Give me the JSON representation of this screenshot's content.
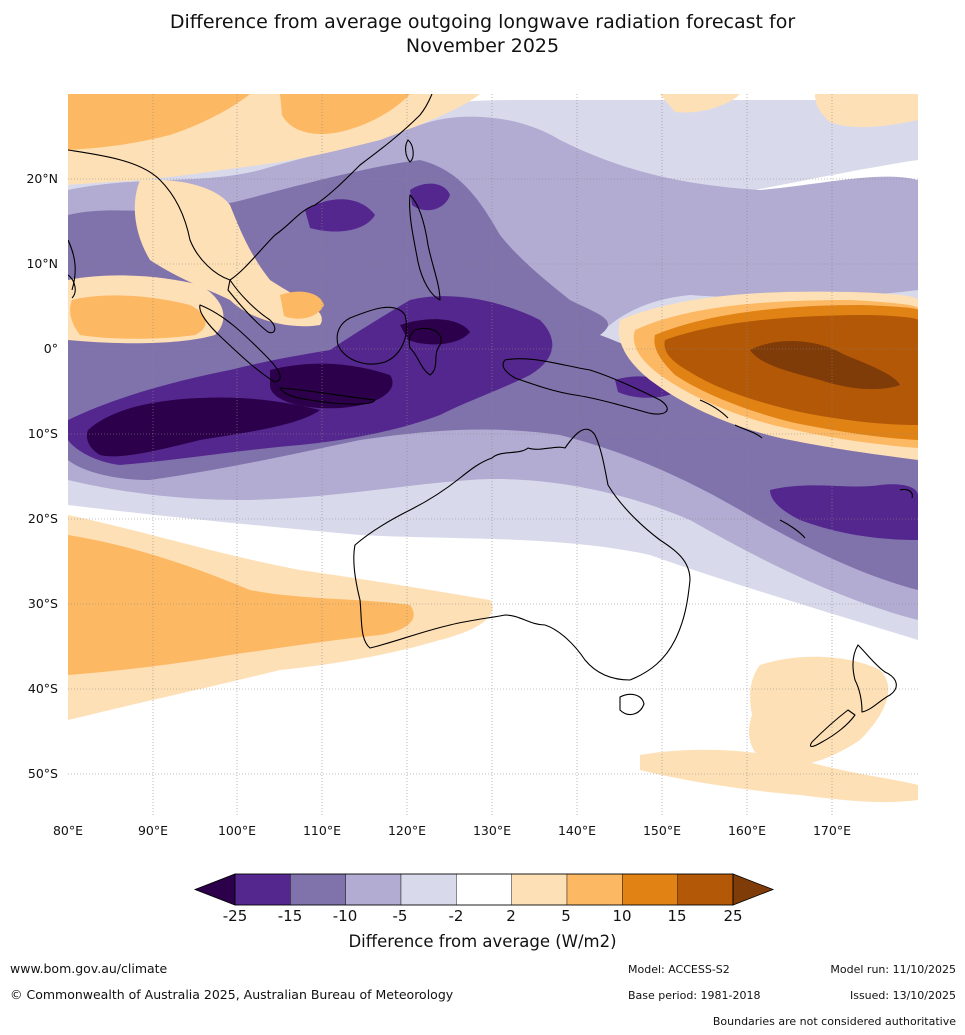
{
  "title_line1": "Difference from average outgoing longwave radiation forecast for",
  "title_line2": "November 2025",
  "lat_labels": [
    "20°N",
    "10°N",
    "0°",
    "10°S",
    "20°S",
    "30°S",
    "40°S",
    "50°S"
  ],
  "lon_labels": [
    "80°E",
    "90°E",
    "100°E",
    "110°E",
    "120°E",
    "130°E",
    "140°E",
    "150°E",
    "160°E",
    "170°E"
  ],
  "colorbar": {
    "ticks": [
      "-25",
      "-15",
      "-10",
      "-5",
      "-2",
      "2",
      "5",
      "10",
      "15",
      "25"
    ],
    "colors": [
      "#54278f",
      "#8073ac",
      "#b2abd2",
      "#d8daeb",
      "#ffffff",
      "#fee0b6",
      "#fdb863",
      "#e08214",
      "#b35806"
    ],
    "under_color": "#2d004b",
    "over_color": "#7f3b08",
    "label": "Difference from average (W/m2)"
  },
  "footer": {
    "website": "www.bom.gov.au/climate",
    "copyright": "© Commonwealth of Australia 2025, Australian Bureau of Meteorology",
    "model": "Model: ACCESS-S2",
    "base_period": "Base period: 1981-2018",
    "model_run": "Model run: 11/10/2025",
    "issued": "Issued: 13/10/2025",
    "disclaimer": "Boundaries are not considered authoritative"
  }
}
